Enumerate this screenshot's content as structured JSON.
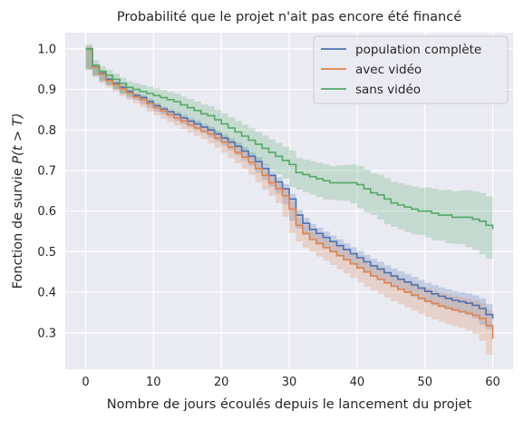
{
  "chart_data": {
    "type": "line",
    "step": true,
    "title": "Probabilité que le projet n'ait pas encore été financé",
    "xlabel": "Nombre de jours écoulés depuis le lancement du projet",
    "ylabel_prefix": "Fonction de survie ",
    "ylabel_math": "P(t > T)",
    "xlim": [
      -3,
      63
    ],
    "ylim": [
      0.21,
      1.04
    ],
    "xticks": [
      "0",
      "10",
      "20",
      "30",
      "40",
      "50",
      "60"
    ],
    "yticks": [
      "0.3",
      "0.4",
      "0.5",
      "0.6",
      "0.7",
      "0.8",
      "0.9",
      "1.0"
    ],
    "grid": true,
    "legend_position": "top-right",
    "series": [
      {
        "name": "population complète",
        "color": "#4c72b0",
        "x": [
          0,
          1,
          2,
          3,
          4,
          5,
          6,
          7,
          8,
          9,
          10,
          11,
          12,
          13,
          14,
          15,
          16,
          17,
          18,
          19,
          20,
          21,
          22,
          23,
          24,
          25,
          26,
          27,
          28,
          29,
          30,
          31,
          32,
          33,
          34,
          35,
          36,
          37,
          38,
          39,
          40,
          41,
          42,
          43,
          44,
          45,
          46,
          47,
          48,
          49,
          50,
          51,
          52,
          53,
          54,
          55,
          56,
          57,
          58,
          59,
          60
        ],
        "y": [
          1.0,
          0.955,
          0.94,
          0.925,
          0.915,
          0.905,
          0.895,
          0.885,
          0.88,
          0.87,
          0.86,
          0.852,
          0.845,
          0.838,
          0.83,
          0.822,
          0.815,
          0.807,
          0.8,
          0.79,
          0.78,
          0.77,
          0.76,
          0.748,
          0.735,
          0.722,
          0.705,
          0.688,
          0.672,
          0.655,
          0.63,
          0.59,
          0.57,
          0.555,
          0.545,
          0.535,
          0.525,
          0.515,
          0.505,
          0.495,
          0.485,
          0.475,
          0.465,
          0.457,
          0.448,
          0.44,
          0.432,
          0.425,
          0.418,
          0.41,
          0.402,
          0.396,
          0.39,
          0.385,
          0.38,
          0.377,
          0.373,
          0.368,
          0.36,
          0.345,
          0.335
        ]
      },
      {
        "name": "avec vidéo",
        "color": "#dd8452",
        "x": [
          0,
          1,
          2,
          3,
          4,
          5,
          6,
          7,
          8,
          9,
          10,
          11,
          12,
          13,
          14,
          15,
          16,
          17,
          18,
          19,
          20,
          21,
          22,
          23,
          24,
          25,
          26,
          27,
          28,
          29,
          30,
          31,
          32,
          33,
          34,
          35,
          36,
          37,
          38,
          39,
          40,
          41,
          42,
          43,
          44,
          45,
          46,
          47,
          48,
          49,
          50,
          51,
          52,
          53,
          54,
          55,
          56,
          57,
          58,
          59,
          60
        ],
        "y": [
          1.0,
          0.955,
          0.938,
          0.922,
          0.912,
          0.902,
          0.892,
          0.882,
          0.875,
          0.865,
          0.855,
          0.847,
          0.838,
          0.83,
          0.822,
          0.813,
          0.805,
          0.797,
          0.79,
          0.78,
          0.77,
          0.758,
          0.745,
          0.733,
          0.72,
          0.705,
          0.688,
          0.67,
          0.655,
          0.638,
          0.605,
          0.565,
          0.545,
          0.53,
          0.52,
          0.51,
          0.5,
          0.49,
          0.48,
          0.47,
          0.46,
          0.45,
          0.44,
          0.432,
          0.423,
          0.415,
          0.407,
          0.4,
          0.393,
          0.385,
          0.378,
          0.372,
          0.366,
          0.361,
          0.356,
          0.352,
          0.348,
          0.343,
          0.335,
          0.318,
          0.285
        ]
      },
      {
        "name": "sans vidéo",
        "color": "#55a868",
        "x": [
          0,
          1,
          2,
          3,
          4,
          5,
          6,
          7,
          8,
          9,
          10,
          11,
          12,
          13,
          14,
          15,
          16,
          17,
          18,
          19,
          20,
          21,
          22,
          23,
          24,
          25,
          26,
          27,
          28,
          29,
          30,
          31,
          32,
          33,
          34,
          35,
          36,
          37,
          38,
          39,
          40,
          41,
          42,
          43,
          44,
          45,
          46,
          47,
          48,
          49,
          50,
          51,
          52,
          53,
          54,
          55,
          56,
          57,
          58,
          59,
          60
        ],
        "y": [
          1.0,
          0.96,
          0.945,
          0.935,
          0.925,
          0.915,
          0.905,
          0.9,
          0.895,
          0.89,
          0.885,
          0.88,
          0.875,
          0.87,
          0.862,
          0.855,
          0.848,
          0.84,
          0.835,
          0.825,
          0.815,
          0.805,
          0.795,
          0.785,
          0.775,
          0.765,
          0.755,
          0.745,
          0.735,
          0.725,
          0.715,
          0.695,
          0.69,
          0.685,
          0.68,
          0.675,
          0.67,
          0.67,
          0.67,
          0.67,
          0.665,
          0.655,
          0.645,
          0.64,
          0.63,
          0.62,
          0.615,
          0.61,
          0.605,
          0.6,
          0.6,
          0.595,
          0.59,
          0.59,
          0.585,
          0.585,
          0.585,
          0.58,
          0.575,
          0.565,
          0.555
        ]
      }
    ]
  }
}
